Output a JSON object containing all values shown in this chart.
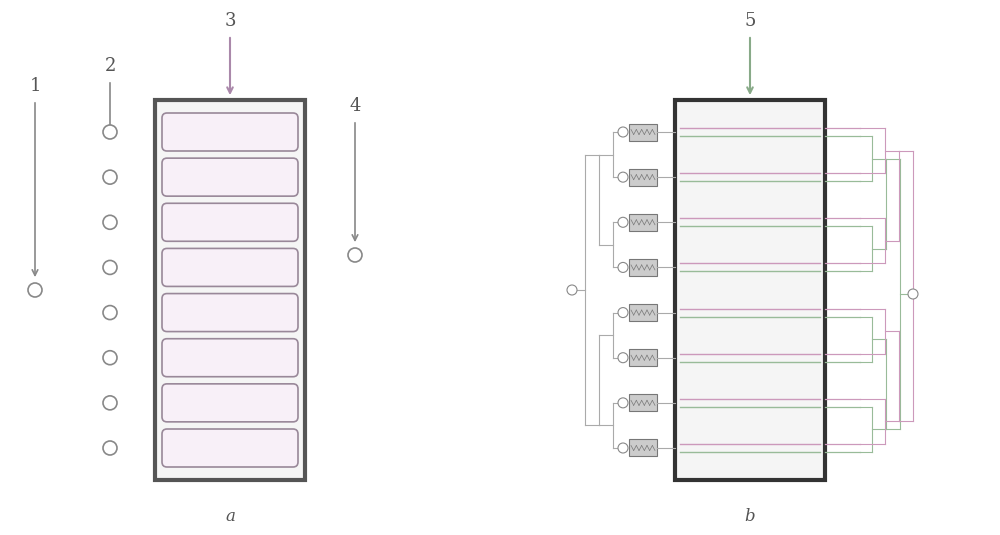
{
  "bg_color": "#ffffff",
  "label_color": "#555555",
  "arrow_color": "#888888",
  "purple_arrow_color": "#aa88aa",
  "green_arrow_color": "#88aa88",
  "rect_border_color": "#555555",
  "dark_border_color": "#333333",
  "channel_color_pink": "#cc99bb",
  "channel_color_green": "#99bb99",
  "n_channels": 8,
  "fig_width": 10.0,
  "fig_height": 5.35,
  "label_a": "a",
  "label_b": "b",
  "labels": [
    "1",
    "2",
    "3",
    "4",
    "5"
  ]
}
